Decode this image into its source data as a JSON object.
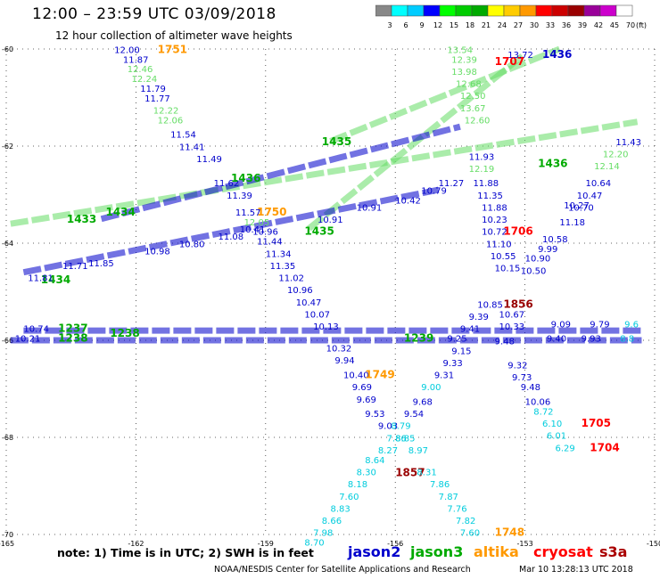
{
  "title": "12:00 – 23:59 UTC 03/09/2018",
  "subtitle": "12 hour collection of altimeter wave heights",
  "note": "note:  1) Time is in UTC;  2) SWH is in feet",
  "credit": "NOAA/NESDIS Center for Satellite Applications and Research",
  "credit_date": "Mar 10 13:28:13 UTC 2018",
  "satellites": [
    {
      "name": "jason2",
      "color": "#0000cc"
    },
    {
      "name": "jason3",
      "color": "#00aa00"
    },
    {
      "name": "altika",
      "color": "#ff9900"
    },
    {
      "name": "cryosat",
      "color": "#ff0000"
    },
    {
      "name": "s3a",
      "color": "#aa0000"
    }
  ],
  "colorbar": {
    "unit": "(ft)",
    "labels": [
      "3",
      "6",
      "9",
      "12",
      "15",
      "18",
      "21",
      "24",
      "27",
      "30",
      "33",
      "36",
      "39",
      "42",
      "45",
      "70"
    ],
    "colors": [
      "#888888",
      "#00ffff",
      "#00ccff",
      "#0000ff",
      "#00ff00",
      "#00cc00",
      "#00aa00",
      "#ffff00",
      "#ffcc00",
      "#ff9900",
      "#ff0000",
      "#cc0000",
      "#990000",
      "#990099",
      "#cc00cc",
      "#ffffff"
    ]
  },
  "chart_data": {
    "type": "scatter",
    "xlim": [
      -165,
      -150
    ],
    "ylim": [
      -70,
      -60
    ],
    "x_ticks": [
      "-165",
      "-162",
      "-159",
      "-156",
      "-153",
      "-150"
    ],
    "y_ticks": [
      "-60",
      "-62",
      "-64",
      "-66",
      "-68",
      "-70"
    ],
    "x_tick_values": [
      -165,
      -162,
      -159,
      -156,
      -153,
      -150
    ],
    "y_tick_values": [
      -60,
      -62,
      -64,
      -66,
      -68,
      -70
    ],
    "grid": true,
    "points": [
      {
        "x": -162.5,
        "y": -60.08,
        "text": "12.00",
        "c": "#0000cc"
      },
      {
        "x": -161.5,
        "y": -60.08,
        "text": "1751",
        "c": "#ff9900",
        "bold": true
      },
      {
        "x": -162.3,
        "y": -60.28,
        "text": "11.87",
        "c": "#0000cc"
      },
      {
        "x": -162.2,
        "y": -60.48,
        "text": "12.46",
        "c": "#66dd66"
      },
      {
        "x": -162.1,
        "y": -60.68,
        "text": "12.24",
        "c": "#66dd66"
      },
      {
        "x": -161.9,
        "y": -60.88,
        "text": "11.79",
        "c": "#0000cc"
      },
      {
        "x": -161.8,
        "y": -61.08,
        "text": "11.77",
        "c": "#0000cc"
      },
      {
        "x": -161.6,
        "y": -61.33,
        "text": "12.22",
        "c": "#66dd66"
      },
      {
        "x": -161.5,
        "y": -61.53,
        "text": "12.06",
        "c": "#66dd66"
      },
      {
        "x": -161.2,
        "y": -61.83,
        "text": "11.54",
        "c": "#0000cc"
      },
      {
        "x": -161.0,
        "y": -62.08,
        "text": "11.41",
        "c": "#0000cc"
      },
      {
        "x": -160.6,
        "y": -62.33,
        "text": "11.49",
        "c": "#0000cc"
      },
      {
        "x": -160.2,
        "y": -62.83,
        "text": "11.62",
        "c": "#0000cc"
      },
      {
        "x": -159.9,
        "y": -63.08,
        "text": "11.39",
        "c": "#0000cc"
      },
      {
        "x": -159.7,
        "y": -63.43,
        "text": "11.57",
        "c": "#0000cc"
      },
      {
        "x": -159.2,
        "y": -63.43,
        "text": "1750",
        "c": "#ff9900",
        "bold": true
      },
      {
        "x": -159.5,
        "y": -63.63,
        "text": "12.05",
        "c": "#66dd66"
      },
      {
        "x": -159.3,
        "y": -63.83,
        "text": "10.96",
        "c": "#0000cc"
      },
      {
        "x": -159.2,
        "y": -64.03,
        "text": "11.44",
        "c": "#0000cc"
      },
      {
        "x": -159.0,
        "y": -64.28,
        "text": "11.34",
        "c": "#0000cc"
      },
      {
        "x": -158.9,
        "y": -64.53,
        "text": "11.35",
        "c": "#0000cc"
      },
      {
        "x": -158.7,
        "y": -64.78,
        "text": "11.02",
        "c": "#0000cc"
      },
      {
        "x": -158.5,
        "y": -65.03,
        "text": "10.96",
        "c": "#0000cc"
      },
      {
        "x": -158.3,
        "y": -65.28,
        "text": "10.47",
        "c": "#0000cc"
      },
      {
        "x": -158.1,
        "y": -65.53,
        "text": "10.07",
        "c": "#0000cc"
      },
      {
        "x": -157.9,
        "y": -65.78,
        "text": "10.13",
        "c": "#0000cc"
      },
      {
        "x": -157.6,
        "y": -66.23,
        "text": "10.32",
        "c": "#0000cc"
      },
      {
        "x": -157.4,
        "y": -66.48,
        "text": "9.94",
        "c": "#0000cc"
      },
      {
        "x": -157.2,
        "y": -66.78,
        "text": "10.40",
        "c": "#0000cc"
      },
      {
        "x": -156.7,
        "y": -66.78,
        "text": "1749",
        "c": "#ff9900",
        "bold": true
      },
      {
        "x": -157.0,
        "y": -67.03,
        "text": "9.69",
        "c": "#0000cc"
      },
      {
        "x": -156.9,
        "y": -67.28,
        "text": "9.69",
        "c": "#0000cc"
      },
      {
        "x": -156.7,
        "y": -67.58,
        "text": "9.53",
        "c": "#0000cc"
      },
      {
        "x": -156.4,
        "y": -67.83,
        "text": "9.03",
        "c": "#0000cc"
      },
      {
        "x": -156.2,
        "y": -68.08,
        "text": "7.86",
        "c": "#00ccdd"
      },
      {
        "x": -156.4,
        "y": -68.33,
        "text": "8.27",
        "c": "#00ccdd"
      },
      {
        "x": -156.7,
        "y": -68.53,
        "text": "8.64",
        "c": "#00ccdd"
      },
      {
        "x": -156.9,
        "y": -68.78,
        "text": "8.30",
        "c": "#00ccdd"
      },
      {
        "x": -157.1,
        "y": -69.03,
        "text": "8.18",
        "c": "#00ccdd"
      },
      {
        "x": -157.3,
        "y": -69.28,
        "text": "7.60",
        "c": "#00ccdd"
      },
      {
        "x": -157.5,
        "y": -69.53,
        "text": "8.83",
        "c": "#00ccdd"
      },
      {
        "x": -157.7,
        "y": -69.78,
        "text": "8.66",
        "c": "#00ccdd"
      },
      {
        "x": -157.9,
        "y": -70.03,
        "text": "7.98",
        "c": "#00ccdd"
      },
      {
        "x": -158.1,
        "y": -70.23,
        "text": "8.70",
        "c": "#00ccdd"
      },
      {
        "x": -156.0,
        "y": -68.8,
        "text": "1857",
        "c": "#990000",
        "bold": true
      },
      {
        "x": -155.8,
        "y": -67.58,
        "text": "9.54",
        "c": "#0000cc"
      },
      {
        "x": -155.6,
        "y": -67.33,
        "text": "9.68",
        "c": "#0000cc"
      },
      {
        "x": -155.4,
        "y": -67.03,
        "text": "9.00",
        "c": "#00ccdd"
      },
      {
        "x": -155.1,
        "y": -66.78,
        "text": "9.31",
        "c": "#0000cc"
      },
      {
        "x": -154.9,
        "y": -66.53,
        "text": "9.33",
        "c": "#0000cc"
      },
      {
        "x": -154.7,
        "y": -66.28,
        "text": "9.15",
        "c": "#0000cc"
      },
      {
        "x": -156.1,
        "y": -67.83,
        "text": "8.79",
        "c": "#00ccdd"
      },
      {
        "x": -156.0,
        "y": -68.08,
        "text": "8.85",
        "c": "#00ccdd"
      },
      {
        "x": -155.7,
        "y": -68.33,
        "text": "8.97",
        "c": "#00ccdd"
      },
      {
        "x": -155.5,
        "y": -68.78,
        "text": "8.31",
        "c": "#00ccdd"
      },
      {
        "x": -155.2,
        "y": -69.03,
        "text": "7.86",
        "c": "#00ccdd"
      },
      {
        "x": -155.0,
        "y": -69.28,
        "text": "7.87",
        "c": "#00ccdd"
      },
      {
        "x": -154.8,
        "y": -69.53,
        "text": "7.76",
        "c": "#00ccdd"
      },
      {
        "x": -154.6,
        "y": -69.78,
        "text": "7.82",
        "c": "#00ccdd"
      },
      {
        "x": -154.5,
        "y": -70.03,
        "text": "7.60",
        "c": "#00ccdd"
      },
      {
        "x": -153.7,
        "y": -70.03,
        "text": "1748",
        "c": "#ff9900",
        "bold": true
      },
      {
        "x": -154.8,
        "y": -66.03,
        "text": "9.25",
        "c": "#0000cc"
      },
      {
        "x": -154.5,
        "y": -65.83,
        "text": "9.41",
        "c": "#0000cc"
      },
      {
        "x": -154.3,
        "y": -65.58,
        "text": "9.39",
        "c": "#0000cc"
      },
      {
        "x": -154.1,
        "y": -65.33,
        "text": "10.85",
        "c": "#0000cc"
      },
      {
        "x": -153.5,
        "y": -65.33,
        "text": "1856",
        "c": "#990000",
        "bold": true
      },
      {
        "x": -153.6,
        "y": -65.53,
        "text": "10.67",
        "c": "#0000cc"
      },
      {
        "x": -153.6,
        "y": -65.78,
        "text": "10.33",
        "c": "#0000cc"
      },
      {
        "x": -153.7,
        "y": -66.08,
        "text": "9.48",
        "c": "#0000cc"
      },
      {
        "x": -153.4,
        "y": -66.58,
        "text": "9.32",
        "c": "#0000cc"
      },
      {
        "x": -153.3,
        "y": -66.83,
        "text": "9.73",
        "c": "#0000cc"
      },
      {
        "x": -153.1,
        "y": -67.03,
        "text": "9.48",
        "c": "#0000cc"
      },
      {
        "x": -153.0,
        "y": -67.33,
        "text": "10.06",
        "c": "#0000cc"
      },
      {
        "x": -152.8,
        "y": -67.53,
        "text": "8.72",
        "c": "#00ccdd"
      },
      {
        "x": -152.6,
        "y": -67.78,
        "text": "6.10",
        "c": "#00ccdd"
      },
      {
        "x": -152.5,
        "y": -68.03,
        "text": "6.01",
        "c": "#00ccdd"
      },
      {
        "x": -152.3,
        "y": -68.28,
        "text": "6.29",
        "c": "#00ccdd"
      },
      {
        "x": -151.7,
        "y": -67.78,
        "text": "1705",
        "c": "#ff0000",
        "bold": true
      },
      {
        "x": -151.5,
        "y": -68.28,
        "text": "1704",
        "c": "#ff0000",
        "bold": true
      },
      {
        "x": -154.0,
        "y": -63.83,
        "text": "10.72",
        "c": "#0000cc"
      },
      {
        "x": -153.9,
        "y": -64.08,
        "text": "11.10",
        "c": "#0000cc"
      },
      {
        "x": -153.8,
        "y": -64.33,
        "text": "10.55",
        "c": "#0000cc"
      },
      {
        "x": -153.7,
        "y": -64.58,
        "text": "10.15",
        "c": "#0000cc"
      },
      {
        "x": -153.5,
        "y": -63.83,
        "text": "1706",
        "c": "#ff0000",
        "bold": true
      },
      {
        "x": -152.6,
        "y": -63.98,
        "text": "10.58",
        "c": "#0000cc"
      },
      {
        "x": -152.7,
        "y": -64.18,
        "text": "9.99",
        "c": "#0000cc"
      },
      {
        "x": -153.0,
        "y": -64.38,
        "text": "10.90",
        "c": "#0000cc"
      },
      {
        "x": -153.1,
        "y": -64.63,
        "text": "10.50",
        "c": "#0000cc"
      },
      {
        "x": -152.2,
        "y": -63.63,
        "text": "11.18",
        "c": "#0000cc"
      },
      {
        "x": -152.0,
        "y": -63.33,
        "text": "10.70",
        "c": "#0000cc"
      },
      {
        "x": -151.8,
        "y": -63.08,
        "text": "10.47",
        "c": "#0000cc"
      },
      {
        "x": -151.6,
        "y": -62.83,
        "text": "10.64",
        "c": "#0000cc"
      },
      {
        "x": -152.1,
        "y": -63.28,
        "text": "10.27",
        "c": "#0000cc"
      },
      {
        "x": -154.0,
        "y": -63.58,
        "text": "10.23",
        "c": "#0000cc"
      },
      {
        "x": -154.0,
        "y": -63.33,
        "text": "11.88",
        "c": "#0000cc"
      },
      {
        "x": -154.1,
        "y": -63.08,
        "text": "11.35",
        "c": "#0000cc"
      },
      {
        "x": -154.2,
        "y": -62.83,
        "text": "11.88",
        "c": "#0000cc"
      },
      {
        "x": -154.3,
        "y": -62.53,
        "text": "12.19",
        "c": "#66dd66"
      },
      {
        "x": -154.3,
        "y": -62.28,
        "text": "11.93",
        "c": "#0000cc"
      },
      {
        "x": -152.7,
        "y": -62.43,
        "text": "1436",
        "c": "#00aa00",
        "bold": true
      },
      {
        "x": -151.4,
        "y": -62.48,
        "text": "12.14",
        "c": "#66dd66"
      },
      {
        "x": -151.2,
        "y": -62.23,
        "text": "12.20",
        "c": "#66dd66"
      },
      {
        "x": -150.9,
        "y": -61.98,
        "text": "11.43",
        "c": "#0000cc"
      },
      {
        "x": -154.4,
        "y": -61.53,
        "text": "12.60",
        "c": "#66dd66"
      },
      {
        "x": -154.5,
        "y": -61.28,
        "text": "13.67",
        "c": "#66dd66"
      },
      {
        "x": -154.5,
        "y": -61.03,
        "text": "12.50",
        "c": "#66dd66"
      },
      {
        "x": -154.6,
        "y": -60.78,
        "text": "12.68",
        "c": "#66dd66"
      },
      {
        "x": -154.7,
        "y": -60.53,
        "text": "13.98",
        "c": "#66dd66"
      },
      {
        "x": -154.8,
        "y": -60.08,
        "text": "13.54",
        "c": "#66dd66"
      },
      {
        "x": -154.7,
        "y": -60.28,
        "text": "12.39",
        "c": "#66dd66"
      },
      {
        "x": -153.7,
        "y": -60.33,
        "text": "1707",
        "c": "#ff0000",
        "bold": true
      },
      {
        "x": -152.6,
        "y": -60.18,
        "text": "1436",
        "c": "#0000cc",
        "bold": true
      },
      {
        "x": -153.4,
        "y": -60.18,
        "text": "13.72",
        "c": "#0000cc"
      },
      {
        "x": -159.8,
        "y": -62.73,
        "text": "1436",
        "c": "#00aa00",
        "bold": true
      },
      {
        "x": -157.7,
        "y": -61.98,
        "text": "1435",
        "c": "#00aa00",
        "bold": true
      },
      {
        "x": -158.1,
        "y": -63.83,
        "text": "1435",
        "c": "#00aa00",
        "bold": true
      },
      {
        "x": -163.6,
        "y": -63.58,
        "text": "1433",
        "c": "#00aa00",
        "bold": true
      },
      {
        "x": -162.7,
        "y": -63.43,
        "text": "1434",
        "c": "#00aa00",
        "bold": true
      },
      {
        "x": -164.2,
        "y": -64.83,
        "text": "1434",
        "c": "#00aa00",
        "bold": true
      },
      {
        "x": -164.5,
        "y": -64.78,
        "text": "11.81",
        "c": "#0000cc"
      },
      {
        "x": -163.7,
        "y": -64.53,
        "text": "11.71",
        "c": "#0000cc"
      },
      {
        "x": -163.1,
        "y": -64.48,
        "text": "11.85",
        "c": "#0000cc"
      },
      {
        "x": -161.8,
        "y": -64.23,
        "text": "10.98",
        "c": "#0000cc"
      },
      {
        "x": -161.0,
        "y": -64.08,
        "text": "10.80",
        "c": "#0000cc"
      },
      {
        "x": -160.1,
        "y": -63.93,
        "text": "11.08",
        "c": "#0000cc"
      },
      {
        "x": -159.6,
        "y": -63.78,
        "text": "10.41",
        "c": "#0000cc"
      },
      {
        "x": -157.8,
        "y": -63.58,
        "text": "10.91",
        "c": "#0000cc"
      },
      {
        "x": -156.9,
        "y": -63.33,
        "text": "10.91",
        "c": "#0000cc"
      },
      {
        "x": -156.0,
        "y": -63.18,
        "text": "10.42",
        "c": "#0000cc"
      },
      {
        "x": -155.4,
        "y": -62.98,
        "text": "10.79",
        "c": "#0000cc"
      },
      {
        "x": -155.0,
        "y": -62.83,
        "text": "11.27",
        "c": "#0000cc"
      },
      {
        "x": -164.6,
        "y": -65.83,
        "text": "10.74",
        "c": "#0000cc"
      },
      {
        "x": -163.8,
        "y": -65.83,
        "text": "1237",
        "c": "#00aa00",
        "bold": true
      },
      {
        "x": -164.8,
        "y": -66.03,
        "text": "10.21",
        "c": "#0000cc"
      },
      {
        "x": -163.8,
        "y": -66.03,
        "text": "1238",
        "c": "#00aa00",
        "bold": true
      },
      {
        "x": -162.6,
        "y": -65.93,
        "text": "1238",
        "c": "#00aa00",
        "bold": true
      },
      {
        "x": -155.8,
        "y": -66.03,
        "text": "1239",
        "c": "#00aa00",
        "bold": true
      },
      {
        "x": -152.4,
        "y": -65.73,
        "text": "9.09",
        "c": "#0000cc"
      },
      {
        "x": -151.5,
        "y": -65.73,
        "text": "9.79",
        "c": "#0000cc"
      },
      {
        "x": -150.7,
        "y": -65.73,
        "text": "9.6",
        "c": "#00ccdd"
      },
      {
        "x": -152.5,
        "y": -66.03,
        "text": "9.40",
        "c": "#0000cc"
      },
      {
        "x": -151.7,
        "y": -66.03,
        "text": "9.93",
        "c": "#0000cc"
      },
      {
        "x": -150.8,
        "y": -66.03,
        "text": "8.8",
        "c": "#00ccdd"
      }
    ],
    "tracks": [
      {
        "c": "#66dd66",
        "x0": -164.9,
        "y0": -63.6,
        "x1": -150.4,
        "y1": -61.5
      },
      {
        "c": "#66dd66",
        "x0": -158.0,
        "y0": -63.7,
        "x1": -153.0,
        "y1": -60.1
      },
      {
        "c": "#0000cc",
        "x0": -162.8,
        "y0": -63.5,
        "x1": -154.5,
        "y1": -61.6
      },
      {
        "c": "#66dd66",
        "x0": -157.5,
        "y0": -61.9,
        "x1": -152.2,
        "y1": -60.0
      },
      {
        "c": "#0000cc",
        "x0": -164.6,
        "y0": -64.6,
        "x1": -155.0,
        "y1": -62.9
      },
      {
        "c": "#0000cc",
        "x0": -164.9,
        "y0": -66.0,
        "x1": -150.3,
        "y1": -66.0
      },
      {
        "c": "#0000cc",
        "x0": -164.6,
        "y0": -65.8,
        "x1": -150.3,
        "y1": -65.8
      }
    ]
  }
}
